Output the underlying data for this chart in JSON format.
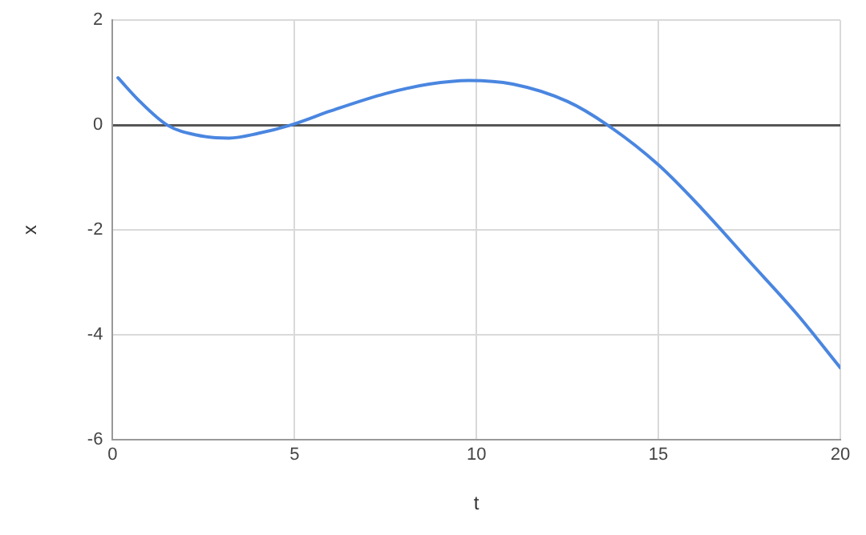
{
  "chart_data": {
    "type": "line",
    "xlabel": "t",
    "ylabel": "x",
    "xlim": [
      0,
      20
    ],
    "xticks": [
      0,
      5,
      10,
      15,
      20
    ],
    "ylim": [
      -6,
      2
    ],
    "yticks": [
      -6,
      -4,
      -2,
      0,
      2
    ],
    "grid": true,
    "legend": false,
    "marker": "none",
    "line_style": "solid",
    "series": [
      {
        "color": "#4a86e0",
        "x": [
          0.15,
          0.75,
          1.5,
          2.3,
          3.2,
          4,
          4.9,
          6,
          7.5,
          8.7,
          9.8,
          11,
          12.5,
          13.6,
          15,
          16.2,
          17.5,
          18.8,
          20
        ],
        "values": [
          0.9,
          0.45,
          0,
          -0.19,
          -0.25,
          -0.16,
          0,
          0.27,
          0.6,
          0.78,
          0.85,
          0.78,
          0.45,
          0,
          -0.76,
          -1.6,
          -2.6,
          -3.6,
          -4.63
        ]
      }
    ]
  }
}
